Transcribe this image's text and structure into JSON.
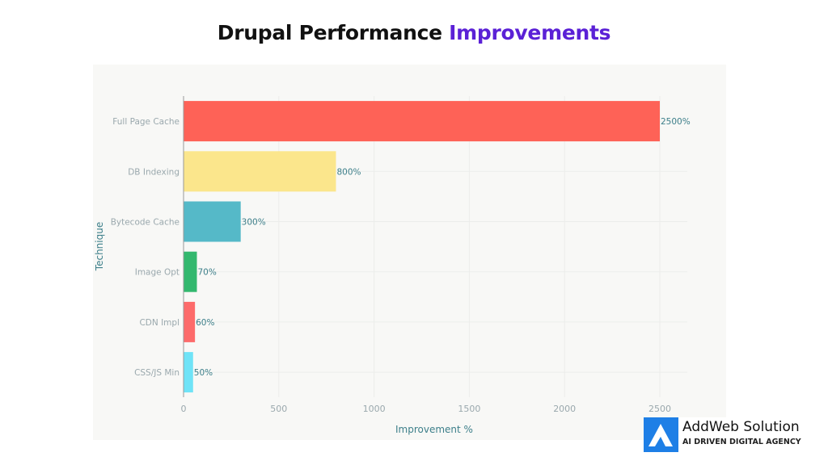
{
  "chart_data": {
    "type": "bar",
    "orientation": "horizontal",
    "title_part1": "Drupal Performance",
    "title_part2": "Improvements",
    "xlabel": "Improvement %",
    "ylabel": "Technique",
    "categories": [
      "Full Page Cache",
      "DB Indexing",
      "Bytecode Cache",
      "Image Opt",
      "CDN Impl",
      "CSS/JS Min"
    ],
    "values": [
      2500,
      800,
      300,
      70,
      60,
      50
    ],
    "data_labels": [
      "2500%",
      "800%",
      "300%",
      "70%",
      "60%",
      "50%"
    ],
    "colors": [
      "#fe6257",
      "#fbe68c",
      "#55b9c8",
      "#33b86e",
      "#fd6b6b",
      "#6fe3f7"
    ],
    "xlim": [
      0,
      2700
    ],
    "xticks": [
      0,
      500,
      1000,
      1500,
      2000,
      2500
    ],
    "grid": true,
    "legend": "none"
  },
  "colors": {
    "title_accent": "#5b21d6",
    "panel_bg": "#f8f8f6",
    "label": "#3d7f8a",
    "tick": "#9aa8ad"
  },
  "logo": {
    "name": "AddWeb Solution",
    "tagline": "AI DRIVEN DIGITAL AGENCY"
  }
}
